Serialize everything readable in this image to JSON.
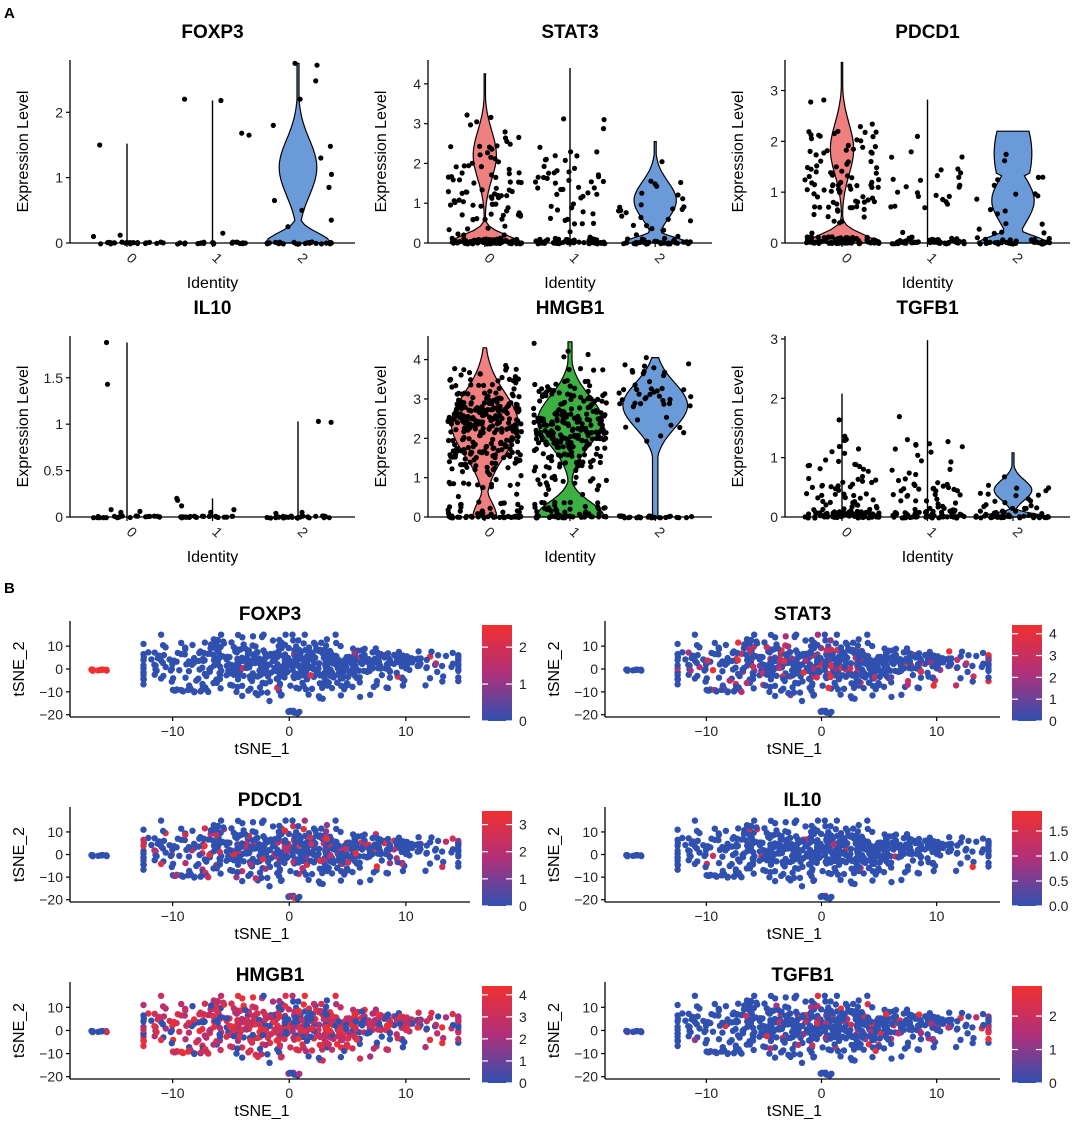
{
  "panel_labels": {
    "a": "A",
    "b": "B"
  },
  "colors": {
    "cluster0": "#F08080",
    "cluster1": "#3CB043",
    "cluster2": "#6A9BD8",
    "point": "#000000",
    "low": "#3050B0",
    "high": "#F03030",
    "mid": "#B0307A"
  },
  "chart_data": [
    {
      "type": "violin",
      "title": "FOXP3",
      "xlabel": "Identity",
      "ylabel": "Expression Level",
      "categories": [
        "0",
        "1",
        "2"
      ],
      "ylim": [
        0,
        2.8
      ],
      "yticks": [
        0,
        1,
        2
      ],
      "violins": [
        {
          "cluster": "0",
          "max": 1.52,
          "shape": "flat",
          "visible": false
        },
        {
          "cluster": "1",
          "max": 2.18,
          "shape": "flat",
          "visible": false
        },
        {
          "cluster": "2",
          "max": 2.75,
          "shape": "mass-at-zero",
          "visible": true
        }
      ],
      "outliers": [
        [
          0,
          1.5
        ],
        [
          0,
          0.12
        ],
        [
          0,
          0.1
        ],
        [
          1,
          2.18
        ],
        [
          1,
          2.2
        ],
        [
          1,
          1.68
        ],
        [
          1,
          1.65
        ],
        [
          1,
          0.15
        ],
        [
          2,
          2.75
        ],
        [
          2,
          2.72
        ],
        [
          2,
          2.48
        ],
        [
          2,
          2.2
        ],
        [
          2,
          1.8
        ],
        [
          2,
          1.48
        ],
        [
          2,
          1.3
        ],
        [
          2,
          1.05
        ],
        [
          2,
          0.85
        ],
        [
          2,
          0.65
        ],
        [
          2,
          0.5
        ],
        [
          2,
          0.35
        ],
        [
          2,
          0.25
        ]
      ]
    },
    {
      "type": "violin",
      "title": "STAT3",
      "xlabel": "Identity",
      "ylabel": "Expression Level",
      "categories": [
        "0",
        "1",
        "2"
      ],
      "ylim": [
        0,
        4.6
      ],
      "yticks": [
        0,
        1,
        2,
        3,
        4
      ],
      "violins": [
        {
          "cluster": "0",
          "max": 4.25,
          "shape": "bimodal",
          "visible": true
        },
        {
          "cluster": "1",
          "max": 4.4,
          "shape": "flat",
          "visible": false
        },
        {
          "cluster": "2",
          "max": 2.55,
          "shape": "bimodal-low",
          "visible": true
        }
      ]
    },
    {
      "type": "violin",
      "title": "PDCD1",
      "xlabel": "Identity",
      "ylabel": "Expression Level",
      "categories": [
        "0",
        "1",
        "2"
      ],
      "ylim": [
        0,
        3.6
      ],
      "yticks": [
        0,
        1,
        2,
        3
      ],
      "violins": [
        {
          "cluster": "0",
          "max": 3.55,
          "shape": "bimodal",
          "visible": true
        },
        {
          "cluster": "1",
          "max": 2.82,
          "shape": "flat",
          "visible": false
        },
        {
          "cluster": "2",
          "max": 2.2,
          "shape": "mass-at-zero-wide",
          "visible": true
        }
      ]
    },
    {
      "type": "violin",
      "title": "IL10",
      "xlabel": "Identity",
      "ylabel": "Expression Level",
      "categories": [
        "0",
        "1",
        "2"
      ],
      "ylim": [
        0,
        1.95
      ],
      "yticks": [
        0.0,
        0.5,
        1.0,
        1.5
      ],
      "violins": [
        {
          "cluster": "0",
          "max": 1.88,
          "shape": "flat",
          "visible": false
        },
        {
          "cluster": "1",
          "max": 0.2,
          "shape": "flat",
          "visible": false
        },
        {
          "cluster": "2",
          "max": 1.03,
          "shape": "flat",
          "visible": false
        }
      ],
      "outliers": [
        [
          0,
          1.88
        ],
        [
          0,
          1.43
        ],
        [
          0,
          0.08
        ],
        [
          0,
          0.06
        ],
        [
          0,
          0.05
        ],
        [
          1,
          0.2
        ],
        [
          1,
          0.18
        ],
        [
          1,
          0.12
        ],
        [
          1,
          0.08
        ],
        [
          1,
          0.05
        ],
        [
          2,
          1.03
        ],
        [
          2,
          1.02
        ],
        [
          2,
          0.05
        ],
        [
          2,
          0.04
        ]
      ]
    },
    {
      "type": "violin",
      "title": "HMGB1",
      "xlabel": "Identity",
      "ylabel": "Expression Level",
      "categories": [
        "0",
        "1",
        "2"
      ],
      "ylim": [
        0,
        4.6
      ],
      "yticks": [
        0,
        1,
        2,
        3,
        4
      ],
      "violins": [
        {
          "cluster": "0",
          "max": 4.3,
          "shape": "wide-mid",
          "visible": true
        },
        {
          "cluster": "1",
          "max": 4.45,
          "shape": "hourglass",
          "visible": true
        },
        {
          "cluster": "2",
          "max": 4.05,
          "shape": "top-heavy",
          "visible": true
        }
      ]
    },
    {
      "type": "violin",
      "title": "TGFB1",
      "xlabel": "Identity",
      "ylabel": "Expression Level",
      "categories": [
        "0",
        "1",
        "2"
      ],
      "ylim": [
        0,
        3.05
      ],
      "yticks": [
        0,
        1,
        2,
        3
      ],
      "violins": [
        {
          "cluster": "0",
          "max": 2.08,
          "shape": "flat",
          "visible": false
        },
        {
          "cluster": "1",
          "max": 2.98,
          "shape": "flat",
          "visible": false
        },
        {
          "cluster": "2",
          "max": 1.08,
          "shape": "mass-at-zero",
          "visible": true
        }
      ]
    },
    {
      "type": "scatter",
      "title": "FOXP3",
      "xlabel": "tSNE_1",
      "ylabel": "tSNE_2",
      "xlim": [
        -18.8,
        15.5
      ],
      "ylim": [
        -21,
        17.5
      ],
      "xticks": [
        -10,
        0,
        10
      ],
      "yticks": [
        -20,
        -10,
        0,
        10
      ],
      "legend_ticks": [
        0,
        1,
        2
      ],
      "legend_max": 2.6,
      "expression": "very sparse"
    },
    {
      "type": "scatter",
      "title": "STAT3",
      "xlabel": "tSNE_1",
      "ylabel": "tSNE_2",
      "xlim": [
        -18.8,
        15.5
      ],
      "ylim": [
        -21,
        17.5
      ],
      "xticks": [
        -10,
        0,
        10
      ],
      "yticks": [
        -20,
        -10,
        0,
        10
      ],
      "legend_ticks": [
        0,
        1,
        2,
        3,
        4
      ],
      "legend_max": 4.4,
      "expression": "moderate"
    },
    {
      "type": "scatter",
      "title": "PDCD1",
      "xlabel": "tSNE_1",
      "ylabel": "tSNE_2",
      "xlim": [
        -18.8,
        15.5
      ],
      "ylim": [
        -21,
        17.5
      ],
      "xticks": [
        -10,
        0,
        10
      ],
      "yticks": [
        -20,
        -10,
        0,
        10
      ],
      "legend_ticks": [
        0,
        1,
        2,
        3
      ],
      "legend_max": 3.5,
      "expression": "moderate"
    },
    {
      "type": "scatter",
      "title": "IL10",
      "xlabel": "tSNE_1",
      "ylabel": "tSNE_2",
      "xlim": [
        -18.8,
        15.5
      ],
      "ylim": [
        -21,
        17.5
      ],
      "xticks": [
        -10,
        0,
        10
      ],
      "yticks": [
        -20,
        -10,
        0,
        10
      ],
      "legend_ticks": [
        "0.0",
        "0.5",
        "1.0",
        "1.5"
      ],
      "legend_max": 1.9,
      "expression": "very sparse"
    },
    {
      "type": "scatter",
      "title": "HMGB1",
      "xlabel": "tSNE_1",
      "ylabel": "tSNE_2",
      "xlim": [
        -18.8,
        15.5
      ],
      "ylim": [
        -21,
        17.5
      ],
      "xticks": [
        -10,
        0,
        10
      ],
      "yticks": [
        -20,
        -10,
        0,
        10
      ],
      "legend_ticks": [
        0,
        1,
        2,
        3,
        4
      ],
      "legend_max": 4.4,
      "expression": "high"
    },
    {
      "type": "scatter",
      "title": "TGFB1",
      "xlabel": "tSNE_1",
      "ylabel": "tSNE_2",
      "xlim": [
        -18.8,
        15.5
      ],
      "ylim": [
        -21,
        17.5
      ],
      "xticks": [
        -10,
        0,
        10
      ],
      "yticks": [
        -20,
        -10,
        0,
        10
      ],
      "legend_ticks": [
        0,
        1,
        2
      ],
      "legend_max": 2.9,
      "expression": "sparse"
    }
  ]
}
